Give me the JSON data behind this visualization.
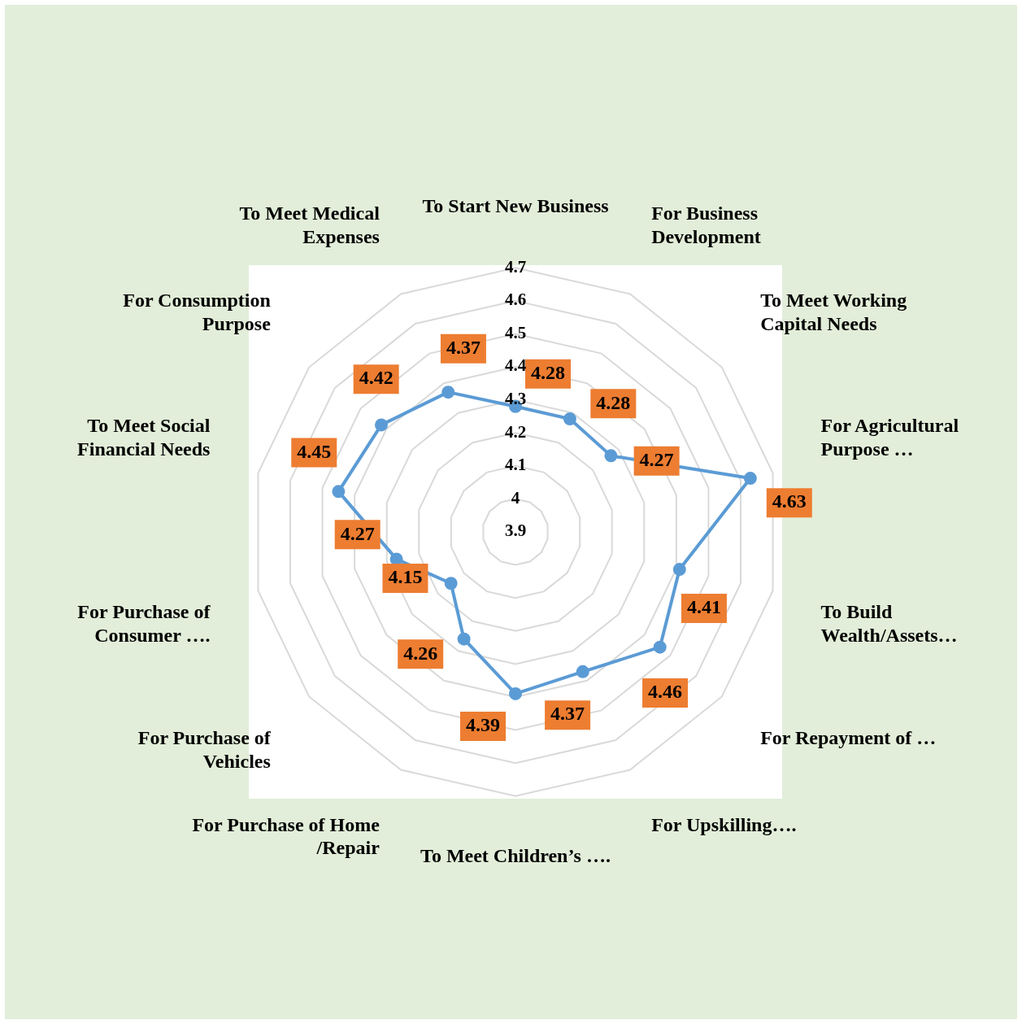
{
  "chart_data": {
    "type": "radar",
    "categories": [
      "To Start New Business",
      "For Business Development",
      "To Meet Working Capital Needs",
      "For Agricultural Purpose …",
      "To Build Wealth/Assets…",
      "For Repayment of …",
      "For Upskilling….",
      "To Meet Children’s ….",
      "For Purchase of Home /Repair",
      "For Purchase of Vehicles",
      "For Purchase of Consumer ….",
      "To Meet Social Financial Needs",
      "For Consumption Purpose",
      "To Meet Medical Expenses"
    ],
    "series": [
      {
        "color": "#5b9bd5",
        "values": [
          4.28,
          4.28,
          4.27,
          4.63,
          4.41,
          4.46,
          4.37,
          4.39,
          4.26,
          4.15,
          4.27,
          4.45,
          4.42,
          4.37
        ]
      }
    ],
    "ylim": [
      3.9,
      4.7
    ],
    "yticks": [
      3.9,
      4,
      4.1,
      4.2,
      4.3,
      4.4,
      4.5,
      4.6,
      4.7
    ],
    "grid": true,
    "marker": "circle",
    "legend": false,
    "data_labels": true
  }
}
